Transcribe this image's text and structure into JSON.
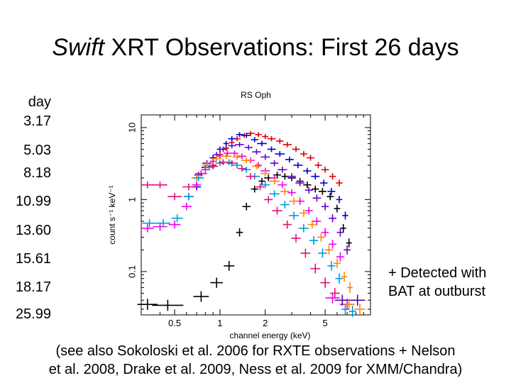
{
  "slide": {
    "title_italic": "Swift",
    "title_rest": " XRT Observations: First 26 days",
    "days_header": "day",
    "days": [
      "3.17",
      "5.03",
      "8.18",
      "10.99",
      "13.60",
      "15.61",
      "18.17",
      "25.99"
    ],
    "note_line1": "+ Detected with",
    "note_line2": "BAT at outburst",
    "footnote_line1": "(see also Sokoloski et al. 2006 for RXTE observations + Nelson",
    "footnote_line2": "et al. 2008, Drake et al. 2009, Ness et al. 2009 for XMM/Chandra)"
  },
  "chart_data": {
    "type": "scatter",
    "title": "RS Oph",
    "xlabel": "channel energy (keV)",
    "ylabel": "count s⁻¹ keV⁻¹",
    "x_scale": "log",
    "y_scale": "log",
    "xlim": [
      0.3,
      10
    ],
    "ylim": [
      0.025,
      15
    ],
    "x_ticks": [
      {
        "value": 0.5,
        "label": "0.5"
      },
      {
        "value": 1,
        "label": "1"
      },
      {
        "value": 2,
        "label": "2"
      },
      {
        "value": 5,
        "label": "5"
      }
    ],
    "y_ticks": [
      {
        "value": 0.1,
        "label": "0.1"
      },
      {
        "value": 1,
        "label": "1"
      },
      {
        "value": 10,
        "label": "10"
      }
    ],
    "series": [
      {
        "color": "#dd0000",
        "points": [
          [
            0.9,
            3.0
          ],
          [
            1.0,
            4.2
          ],
          [
            1.1,
            5.2
          ],
          [
            1.2,
            6.2
          ],
          [
            1.3,
            7.0
          ],
          [
            1.45,
            7.8
          ],
          [
            1.6,
            8.3
          ],
          [
            1.8,
            8.0
          ],
          [
            2.0,
            7.5
          ],
          [
            2.2,
            7.0
          ],
          [
            2.5,
            6.5
          ],
          [
            2.8,
            5.8
          ],
          [
            3.2,
            5.0
          ],
          [
            3.6,
            4.3
          ],
          [
            4.0,
            3.8
          ],
          [
            4.5,
            3.0
          ],
          [
            5.0,
            2.6
          ],
          [
            5.6,
            2.1
          ],
          [
            6.2,
            1.7
          ]
        ]
      },
      {
        "color": "#000000",
        "points": [
          [
            0.33,
            0.035
          ],
          [
            0.45,
            0.034
          ],
          [
            0.75,
            0.045
          ],
          [
            0.95,
            0.07
          ],
          [
            1.15,
            0.12
          ],
          [
            1.35,
            0.35
          ],
          [
            1.5,
            0.8
          ],
          [
            1.7,
            1.4
          ],
          [
            1.9,
            1.8
          ],
          [
            2.1,
            2.0
          ],
          [
            2.4,
            2.2
          ],
          [
            2.7,
            2.1
          ],
          [
            3.0,
            2.0
          ],
          [
            3.4,
            1.8
          ],
          [
            3.8,
            1.6
          ],
          [
            4.3,
            1.4
          ],
          [
            4.8,
            1.3
          ],
          [
            5.4,
            1.1
          ],
          [
            6.0,
            0.75
          ],
          [
            6.6,
            0.4
          ],
          [
            7.2,
            0.25
          ]
        ]
      },
      {
        "color": "#0000cc",
        "points": [
          [
            0.7,
            1.5
          ],
          [
            0.8,
            2.8
          ],
          [
            0.9,
            3.8
          ],
          [
            1.0,
            5.0
          ],
          [
            1.1,
            6.0
          ],
          [
            1.2,
            7.0
          ],
          [
            1.35,
            8.0
          ],
          [
            1.5,
            7.8
          ],
          [
            1.7,
            6.8
          ],
          [
            1.9,
            6.0
          ],
          [
            2.2,
            5.0
          ],
          [
            2.5,
            4.3
          ],
          [
            2.9,
            3.6
          ],
          [
            3.3,
            3.0
          ],
          [
            3.8,
            2.5
          ],
          [
            4.3,
            2.1
          ],
          [
            4.9,
            1.7
          ],
          [
            5.5,
            1.3
          ],
          [
            6.2,
            1.0
          ],
          [
            6.8,
            0.6
          ]
        ]
      },
      {
        "color": "#6600cc",
        "points": [
          [
            0.62,
            1.1
          ],
          [
            0.72,
            2.2
          ],
          [
            0.82,
            3.2
          ],
          [
            0.95,
            4.2
          ],
          [
            1.05,
            5.0
          ],
          [
            1.2,
            5.6
          ],
          [
            1.35,
            5.8
          ],
          [
            1.55,
            5.3
          ],
          [
            1.75,
            4.6
          ],
          [
            2.0,
            3.9
          ],
          [
            2.3,
            3.2
          ],
          [
            2.6,
            2.6
          ],
          [
            3.0,
            2.1
          ],
          [
            3.4,
            1.7
          ],
          [
            3.9,
            1.35
          ],
          [
            4.4,
            1.05
          ],
          [
            5.0,
            0.8
          ],
          [
            5.6,
            0.55
          ],
          [
            6.3,
            0.35
          ],
          [
            7.0,
            0.2
          ]
        ]
      },
      {
        "color": "#ee00ee",
        "points": [
          [
            0.33,
            0.4
          ],
          [
            0.4,
            0.42
          ],
          [
            0.5,
            0.45
          ],
          [
            0.6,
            0.8
          ],
          [
            0.7,
            1.6
          ],
          [
            0.8,
            2.6
          ],
          [
            0.9,
            3.4
          ],
          [
            1.0,
            4.0
          ],
          [
            1.12,
            4.4
          ],
          [
            1.25,
            4.4
          ],
          [
            1.4,
            4.0
          ],
          [
            1.6,
            3.5
          ],
          [
            1.8,
            3.0
          ],
          [
            2.0,
            2.5
          ],
          [
            2.3,
            2.0
          ],
          [
            2.6,
            1.6
          ],
          [
            3.0,
            1.25
          ],
          [
            3.4,
            0.95
          ],
          [
            3.9,
            0.7
          ],
          [
            4.4,
            0.5
          ],
          [
            5.0,
            0.35
          ],
          [
            5.6,
            0.24
          ],
          [
            6.3,
            0.16
          ]
        ]
      },
      {
        "color": "#ff8800",
        "points": [
          [
            0.7,
            2.0
          ],
          [
            0.82,
            3.0
          ],
          [
            0.95,
            3.7
          ],
          [
            1.1,
            4.0
          ],
          [
            1.3,
            3.9
          ],
          [
            1.5,
            3.5
          ],
          [
            1.75,
            2.9
          ],
          [
            2.0,
            2.3
          ],
          [
            2.3,
            1.8
          ],
          [
            2.7,
            1.3
          ],
          [
            3.1,
            0.95
          ],
          [
            3.6,
            0.65
          ],
          [
            4.1,
            0.45
          ],
          [
            4.7,
            0.3
          ],
          [
            5.3,
            0.2
          ],
          [
            6.0,
            0.13
          ],
          [
            6.7,
            0.085
          ],
          [
            7.3,
            0.06
          ]
        ]
      },
      {
        "color": "#0099dd",
        "points": [
          [
            0.34,
            0.47
          ],
          [
            0.42,
            0.47
          ],
          [
            0.52,
            0.55
          ],
          [
            0.62,
            1.1
          ],
          [
            0.72,
            2.0
          ],
          [
            0.85,
            2.8
          ],
          [
            1.0,
            3.2
          ],
          [
            1.15,
            3.3
          ],
          [
            1.3,
            3.0
          ],
          [
            1.5,
            2.6
          ],
          [
            1.7,
            2.1
          ],
          [
            2.0,
            1.6
          ],
          [
            2.3,
            1.2
          ],
          [
            2.7,
            0.85
          ],
          [
            3.1,
            0.6
          ],
          [
            3.6,
            0.4
          ],
          [
            4.2,
            0.27
          ],
          [
            4.8,
            0.18
          ],
          [
            5.5,
            0.12
          ],
          [
            6.2,
            0.08
          ]
        ]
      },
      {
        "color": "#dd1177",
        "points": [
          [
            0.33,
            1.6
          ],
          [
            0.4,
            1.6
          ],
          [
            0.5,
            1.1
          ],
          [
            0.62,
            1.5
          ],
          [
            0.75,
            2.3
          ],
          [
            0.9,
            2.9
          ],
          [
            1.05,
            3.3
          ],
          [
            1.2,
            3.2
          ],
          [
            1.4,
            2.7
          ],
          [
            1.6,
            2.1
          ],
          [
            1.85,
            1.5
          ],
          [
            2.1,
            1.0
          ],
          [
            2.4,
            0.7
          ],
          [
            2.8,
            0.45
          ],
          [
            3.2,
            0.29
          ],
          [
            3.7,
            0.18
          ],
          [
            4.3,
            0.11
          ],
          [
            5.0,
            0.07
          ],
          [
            5.8,
            0.05
          ]
        ]
      },
      {
        "color": "#ee00ee",
        "points": [
          [
            5.6,
            0.043
          ],
          [
            7.0,
            0.035
          ]
        ]
      },
      {
        "color": "#5500aa",
        "points": [
          [
            6.5,
            0.04
          ],
          [
            8.2,
            0.04
          ]
        ]
      },
      {
        "color": "#ff8800",
        "points": [
          [
            7.2,
            0.035
          ],
          [
            8.5,
            0.03
          ]
        ]
      },
      {
        "color": "#0099dd",
        "points": [
          [
            6.8,
            0.03
          ],
          [
            7.6,
            0.028
          ]
        ]
      }
    ]
  }
}
